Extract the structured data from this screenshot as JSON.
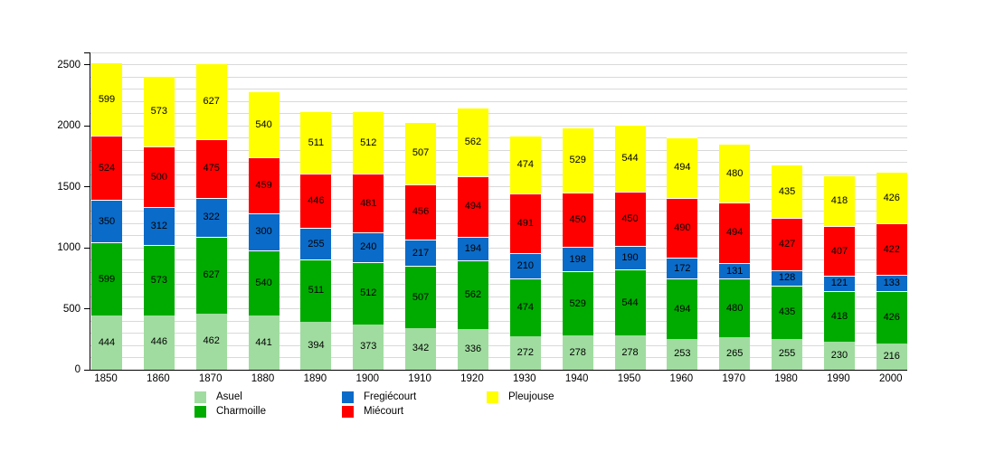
{
  "chart_data": {
    "type": "bar",
    "stacked": true,
    "categories": [
      "1850",
      "1860",
      "1870",
      "1880",
      "1890",
      "1900",
      "1910",
      "1920",
      "1930",
      "1940",
      "1950",
      "1960",
      "1970",
      "1980",
      "1990",
      "2000"
    ],
    "series": [
      {
        "name": "Asuel",
        "color": "#a0dca0",
        "values": [
          444,
          446,
          462,
          441,
          394,
          373,
          342,
          336,
          272,
          278,
          278,
          253,
          265,
          255,
          230,
          216
        ]
      },
      {
        "name": "Charmoille",
        "color": "#00ab00",
        "values": [
          599,
          573,
          627,
          540,
          511,
          512,
          507,
          562,
          474,
          529,
          544,
          494,
          480,
          435,
          418,
          426
        ]
      },
      {
        "name": "Fregiécourt",
        "color": "#0b6bc8",
        "values": [
          350,
          312,
          322,
          300,
          255,
          240,
          217,
          194,
          210,
          198,
          190,
          172,
          131,
          128,
          121,
          133
        ]
      },
      {
        "name": "Miécourt",
        "color": "#ff0000",
        "values": [
          524,
          500,
          475,
          459,
          446,
          481,
          456,
          494,
          491,
          450,
          450,
          490,
          494,
          427,
          407,
          422
        ]
      },
      {
        "name": "Pleujouse",
        "color": "#ffff00",
        "values": [
          599,
          573,
          627,
          540,
          511,
          512,
          507,
          562,
          474,
          529,
          544,
          494,
          480,
          435,
          418,
          426
        ]
      }
    ],
    "y_ticks": [
      0,
      500,
      1000,
      1500,
      2000,
      2500
    ],
    "ylim": [
      0,
      2600
    ],
    "grid_step": 100,
    "grid_color": "#d9d9d9",
    "axis_color": "#000000",
    "value_labels_shown": true,
    "legend_position": "bottom"
  }
}
